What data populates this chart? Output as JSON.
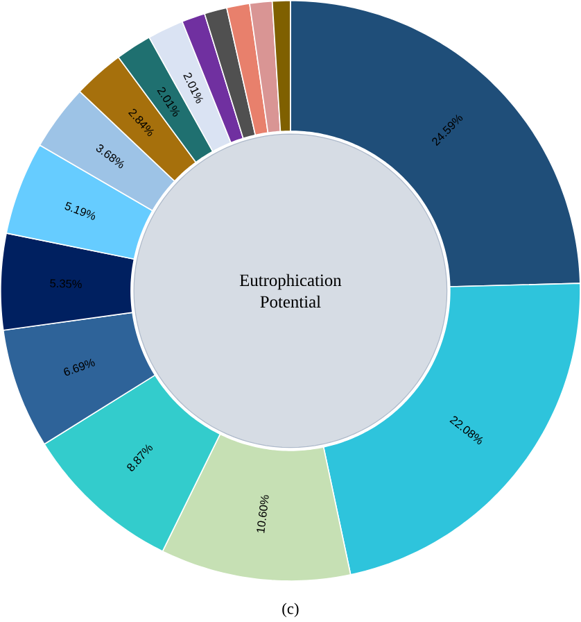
{
  "chart_data": {
    "type": "donut",
    "title": "Eutrophication Potential",
    "annotations": [
      "(c)"
    ],
    "categories": [
      null,
      null,
      null,
      null,
      null,
      null,
      null,
      null,
      null,
      null,
      null,
      null,
      null,
      null,
      null,
      null
    ],
    "values": [
      24.59,
      22.08,
      10.6,
      8.87,
      6.69,
      5.35,
      5.19,
      3.68,
      2.84,
      2.01,
      2.01,
      1.3,
      1.26,
      1.28,
      1.25,
      1.0
    ],
    "value_labels": [
      "24.59%",
      "22.08%",
      "10.60%",
      "8.87%",
      "6.69%",
      "5.35%",
      "5.19%",
      "3.68%",
      "2.84%",
      "2.01%",
      "2.01%",
      null,
      null,
      null,
      null,
      null
    ],
    "colors": [
      "#1f4e79",
      "#2ec4dc",
      "#c6e0b4",
      "#33cccc",
      "#2e6399",
      "#002060",
      "#66ccff",
      "#9dc3e6",
      "#a6700c",
      "#1f7070",
      "#dae3f3",
      "#7030a0",
      "#505050",
      "#e8806c",
      "#d99594",
      "#7f6000"
    ]
  }
}
